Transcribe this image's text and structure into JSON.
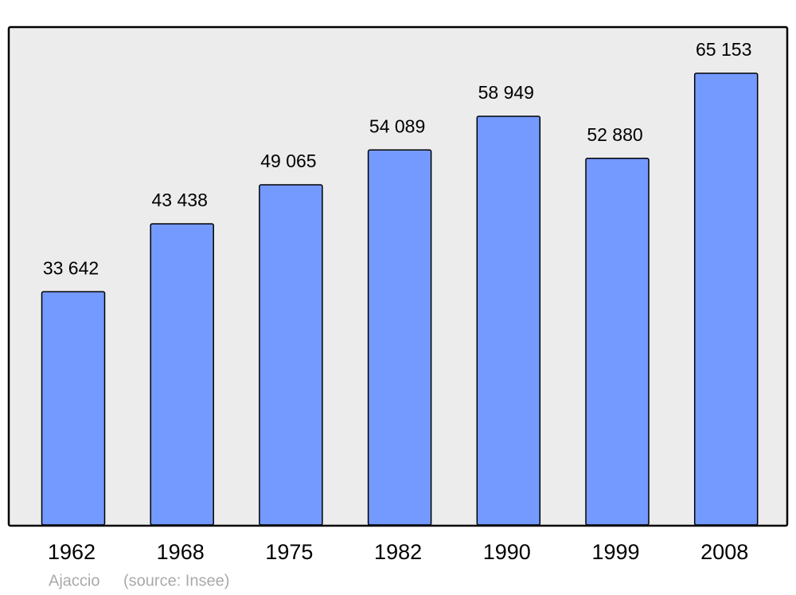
{
  "chart_data": {
    "type": "bar",
    "categories": [
      "1962",
      "1968",
      "1975",
      "1982",
      "1990",
      "1999",
      "2008"
    ],
    "values": [
      33642,
      43438,
      49065,
      54089,
      58949,
      52880,
      65153
    ],
    "value_labels": [
      "33 642",
      "43 438",
      "49 065",
      "54 089",
      "58 949",
      "52 880",
      "65 153"
    ],
    "color": "#7499ff",
    "place": "Ajaccio",
    "source": "(source: Insee)"
  }
}
